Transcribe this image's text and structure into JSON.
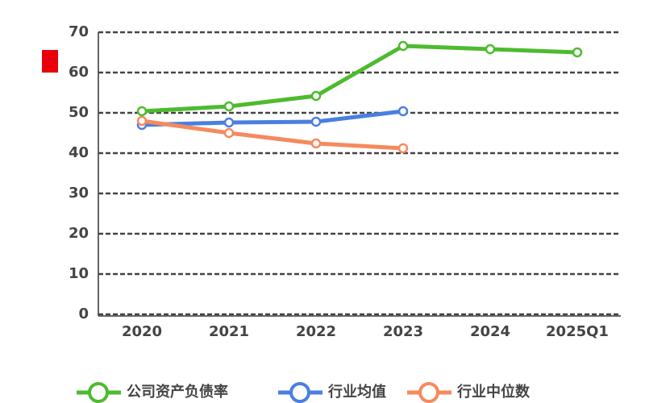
{
  "chart_data": {
    "type": "line",
    "categories": [
      "2020",
      "2021",
      "2022",
      "2023",
      "2024",
      "2025Q1"
    ],
    "series": [
      {
        "name": "公司资产负债率",
        "color": "#4dbb2f",
        "values": [
          50.4,
          51.6,
          54.2,
          66.6,
          65.8,
          65
        ]
      },
      {
        "name": "行业均值",
        "color": "#4a7fe0",
        "values": [
          47,
          47.6,
          47.8,
          50.4,
          null,
          null
        ]
      },
      {
        "name": "行业中位数",
        "color": "#f58a5e",
        "values": [
          48,
          45,
          42.4,
          41.2,
          null,
          null
        ]
      }
    ],
    "ylim": [
      0,
      70
    ],
    "yticks": [
      0,
      10,
      20,
      30,
      40,
      50,
      60,
      70
    ],
    "grid": true
  }
}
